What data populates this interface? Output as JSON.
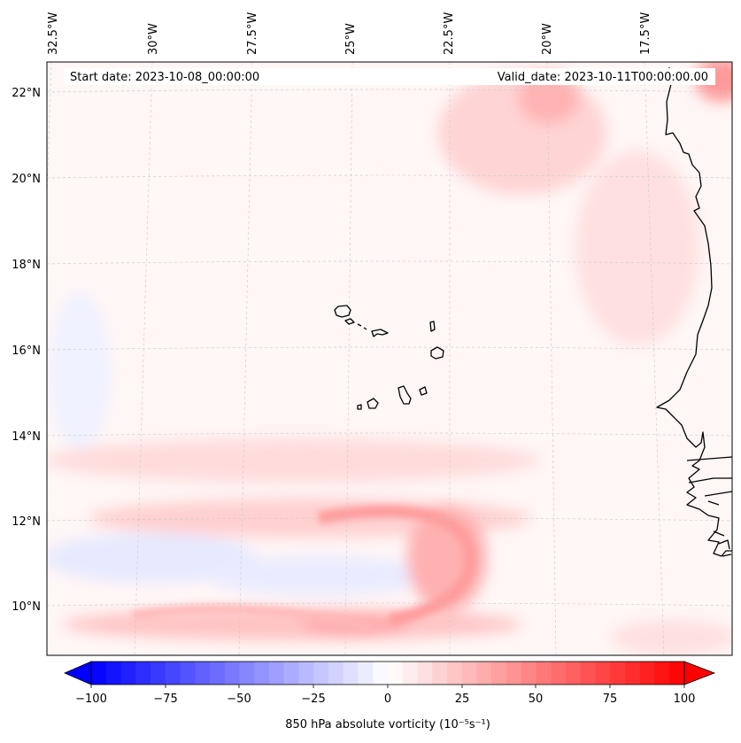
{
  "map": {
    "start_date_label": "Start date: 2023-10-08_00:00:00",
    "valid_date_label": "Valid_date: 2023-10-11T00:00:00.00",
    "lon_labels": [
      "32.5°W",
      "30°W",
      "27.5°W",
      "25°W",
      "22.5°W",
      "20°W",
      "17.5°W"
    ],
    "lat_labels": [
      "22°N",
      "20°N",
      "18°N",
      "16°N",
      "14°N",
      "12°N",
      "10°N"
    ],
    "region": "Cabo Verde islands and West African coast",
    "colors": {
      "negative": "#0000ff",
      "neutral": "#ffffff",
      "positive": "#ff0000",
      "coast": "#000000"
    }
  },
  "colorbar": {
    "label": "850 hPa absolute vorticity (10⁻⁵s⁻¹)",
    "ticks": [
      "−100",
      "−75",
      "−50",
      "−25",
      "0",
      "25",
      "50",
      "75",
      "100"
    ],
    "min": -100,
    "max": 100,
    "levels": 40
  }
}
